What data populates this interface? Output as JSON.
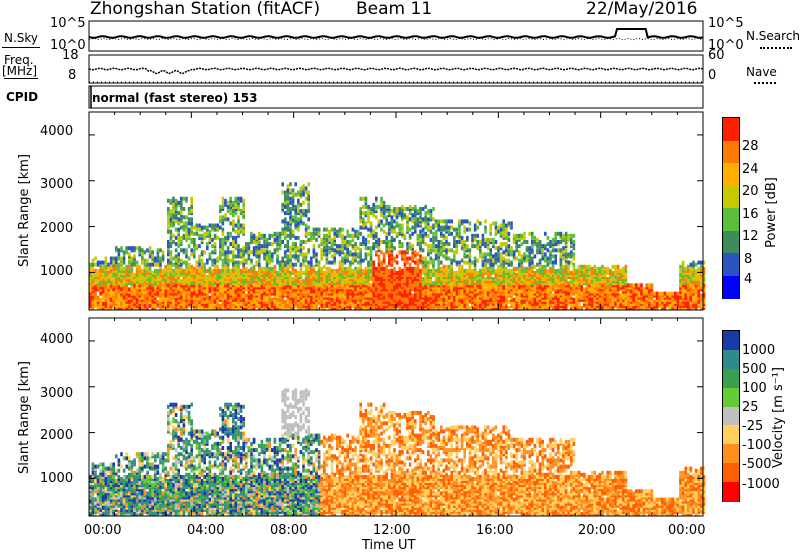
{
  "header": {
    "station": "Zhongshan Station (fitACF)",
    "beam": "Beam 11",
    "date": "22/May/2016"
  },
  "side_labels": {
    "nsky": "N.Sky",
    "nsearch": "N.Search",
    "freq_line1": "Freq.",
    "freq_line2": "[MHz]",
    "nave": "Nave",
    "cpid": "CPID",
    "mode": "normal (fast stereo) 153"
  },
  "noise_panel": {
    "left_ticks": [
      "10^5",
      "10^0"
    ],
    "right_ticks": [
      "10^5",
      "10^0"
    ]
  },
  "freq_panel": {
    "left_ticks": [
      "18",
      "8"
    ],
    "right_ticks": [
      "60",
      "0"
    ]
  },
  "time_axis": {
    "ticks": [
      "00:00",
      "04:00",
      "08:00",
      "12:00",
      "16:00",
      "20:00",
      "00:00"
    ],
    "xlabel": "Time UT"
  },
  "chart_data": [
    {
      "type": "heatmap",
      "ylabel": "Slant Range [km]",
      "xlabel": "Time UT",
      "xlim": [
        0,
        24
      ],
      "ylim": [
        180,
        4500
      ],
      "y_ticks": [
        "1000",
        "2000",
        "3000",
        "4000"
      ],
      "colorbar": {
        "label": "Power [dB]",
        "ticks": [
          "4",
          "8",
          "12",
          "16",
          "20",
          "24",
          "28"
        ],
        "range": [
          0,
          30
        ],
        "colors": [
          "#0000ff",
          "#2a55c0",
          "#3d8c5a",
          "#5cbf3a",
          "#c8c800",
          "#ffb000",
          "#ff7a00",
          "#ff2000"
        ]
      }
    },
    {
      "type": "heatmap",
      "ylabel": "Slant Range [km]",
      "xlabel": "Time UT",
      "xlim": [
        0,
        24
      ],
      "ylim": [
        180,
        4500
      ],
      "y_ticks": [
        "1000",
        "2000",
        "3000",
        "4000"
      ],
      "colorbar": {
        "label": "Velocity  [m s⁻¹]",
        "ticks": [
          "1000",
          "500",
          "100",
          "25",
          "-25",
          "-100",
          "-500",
          "-1000"
        ],
        "colors": [
          "#1a3aa8",
          "#2f8a8a",
          "#3aa050",
          "#66cc33",
          "#bfbfbf",
          "#ffd060",
          "#ff9020",
          "#ff6000",
          "#ff0000"
        ]
      }
    }
  ]
}
